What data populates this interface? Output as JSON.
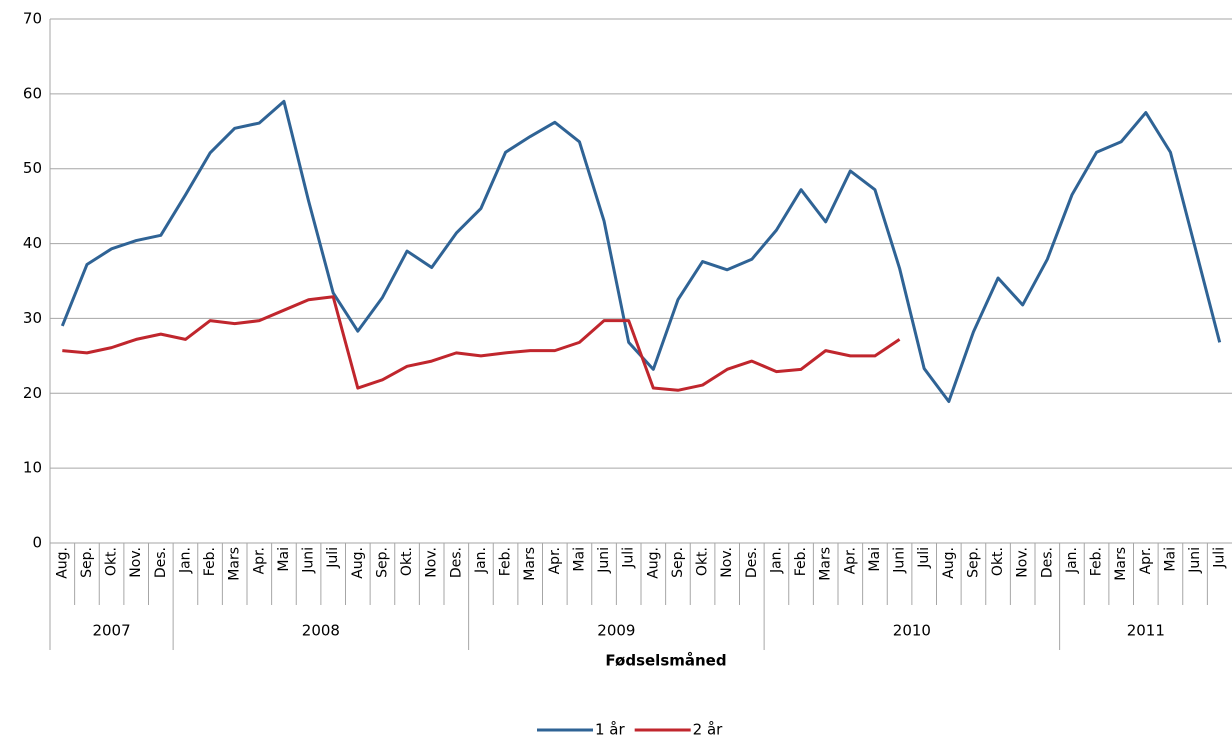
{
  "chart_data": {
    "type": "line",
    "x_label": "Fødselsmåned",
    "categories": [
      "Aug.",
      "Sep.",
      "Okt.",
      "Nov.",
      "Des.",
      "Jan.",
      "Feb.",
      "Mars",
      "Apr.",
      "Mai",
      "Juni",
      "Juli",
      "Aug.",
      "Sep.",
      "Okt.",
      "Nov.",
      "Des.",
      "Jan.",
      "Feb.",
      "Mars",
      "Apr.",
      "Mai",
      "Juni",
      "Juli",
      "Aug.",
      "Sep.",
      "Okt.",
      "Nov.",
      "Des.",
      "Jan.",
      "Feb.",
      "Mars",
      "Apr.",
      "Mai",
      "Juni",
      "Juli",
      "Aug.",
      "Sep.",
      "Okt.",
      "Nov.",
      "Des.",
      "Jan.",
      "Feb.",
      "Mars",
      "Apr.",
      "Mai",
      "Juni",
      "Juli"
    ],
    "category_groups": [
      "2007",
      null,
      null,
      null,
      null,
      "2008",
      null,
      null,
      null,
      null,
      null,
      null,
      null,
      null,
      null,
      null,
      null,
      "2009",
      null,
      null,
      null,
      null,
      null,
      null,
      null,
      null,
      null,
      null,
      null,
      "2010",
      null,
      null,
      null,
      null,
      null,
      null,
      null,
      null,
      null,
      null,
      null,
      "2011",
      null,
      null,
      null,
      null,
      null,
      null
    ],
    "series": [
      {
        "name": "1 år",
        "color": "#2f6395",
        "values": [
          29,
          37.2,
          39.3,
          40.4,
          41.1,
          46.5,
          52.1,
          55.4,
          56.1,
          59,
          45.7,
          33.4,
          28.3,
          32.8,
          39,
          36.8,
          41.4,
          44.7,
          52.2,
          54.3,
          56.2,
          53.6,
          43,
          26.8,
          23.2,
          32.5,
          37.6,
          36.5,
          37.9,
          41.8,
          47.2,
          42.9,
          49.7,
          47.2,
          36.7,
          23.3,
          18.9,
          28.2,
          35.4,
          31.8,
          37.9,
          46.5,
          52.2,
          53.6,
          57.5,
          52.2,
          39.5,
          26.8
        ]
      },
      {
        "name": "2 år",
        "color": "#c0262d",
        "values": [
          25.7,
          25.4,
          26.1,
          27.2,
          27.9,
          27.2,
          29.7,
          29.3,
          29.7,
          31.1,
          32.5,
          32.9,
          20.7,
          21.8,
          23.6,
          24.3,
          25.4,
          25,
          25.4,
          25.7,
          25.7,
          26.8,
          29.7,
          29.7,
          20.7,
          20.4,
          21.1,
          23.2,
          24.3,
          22.9,
          23.2,
          25.7,
          25,
          25,
          27.2,
          null,
          null,
          null,
          null,
          null,
          null,
          null,
          null,
          null,
          null,
          null,
          null,
          null
        ]
      }
    ],
    "ylim": [
      0,
      70
    ],
    "yticks": [
      0,
      10,
      20,
      30,
      40,
      50,
      60,
      70
    ],
    "grid": true,
    "legend": "bottom"
  }
}
